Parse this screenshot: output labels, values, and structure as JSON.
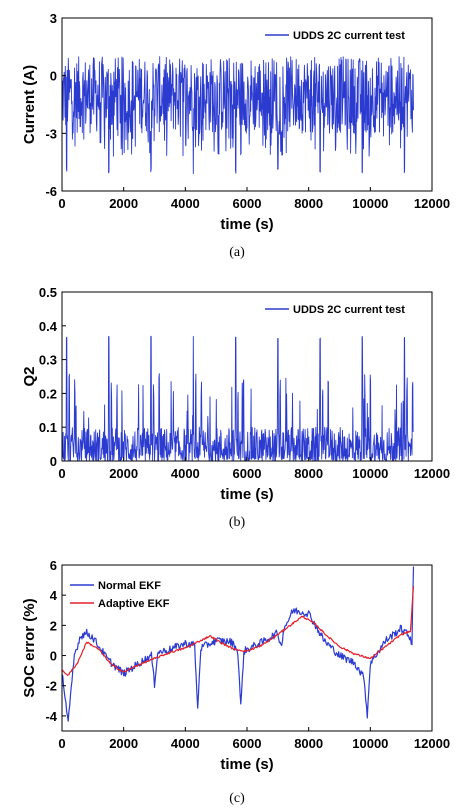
{
  "chart_data": [
    {
      "type": "line",
      "caption": "(a)",
      "xlabel": "time (s)",
      "ylabel": "Current (A)",
      "xlim": [
        0,
        12000
      ],
      "ylim": [
        -6,
        3
      ],
      "xticks": [
        0,
        2000,
        4000,
        6000,
        8000,
        10000,
        12000
      ],
      "yticks": [
        -6,
        -3,
        0,
        3
      ],
      "legend_position": "top-right",
      "grid": false,
      "series": [
        {
          "name": "UDDS 2C current test",
          "color": "#2b3bd0",
          "description": "dense oscillating current signal, mostly between about 1 and -3 A, with deep negative spikes to about -5 A roughly every 1370 s, ending at about 11400 s",
          "x_range": [
            0,
            11400
          ],
          "y_band": [
            -3,
            1
          ],
          "spike_times": [
            150,
            1520,
            2890,
            4260,
            5630,
            7000,
            8370,
            9740,
            11110
          ],
          "spike_min": -5.1
        }
      ]
    },
    {
      "type": "line",
      "caption": "(b)",
      "xlabel": "time (s)",
      "ylabel": "Q2",
      "xlim": [
        0,
        12000
      ],
      "ylim": [
        0,
        0.5
      ],
      "xticks": [
        0,
        2000,
        4000,
        6000,
        8000,
        10000,
        12000
      ],
      "yticks": [
        0,
        0.1,
        0.2,
        0.3,
        0.4,
        0.5
      ],
      "legend_position": "top-right",
      "grid": false,
      "series": [
        {
          "name": "UDDS 2C current test",
          "color": "#2b3bd0",
          "description": "noisy signal mostly between 0 and 0.1, with tall spikes up to about 0.37 roughly every 1370 s and secondary peaks near 0.2-0.25",
          "x_range": [
            0,
            11400
          ],
          "y_band": [
            0,
            0.1
          ],
          "spike_times": [
            150,
            1520,
            2890,
            4260,
            5630,
            7000,
            8370,
            9740,
            11110
          ],
          "spike_max": 0.37
        }
      ]
    },
    {
      "type": "line",
      "caption": "(c)",
      "xlabel": "time (s)",
      "ylabel": "SOC error (%)",
      "xlim": [
        0,
        12000
      ],
      "ylim": [
        -5,
        6
      ],
      "xticks": [
        0,
        2000,
        4000,
        6000,
        8000,
        10000,
        12000
      ],
      "yticks": [
        -4,
        -2,
        0,
        2,
        4,
        6
      ],
      "legend_position": "top-left",
      "grid": false,
      "series": [
        {
          "name": "Normal EKF",
          "color": "#2b3bd0",
          "x": [
            0,
            200,
            400,
            600,
            800,
            1000,
            1500,
            2000,
            2500,
            2900,
            3000,
            3100,
            3500,
            4000,
            4300,
            4400,
            4500,
            5000,
            5500,
            5700,
            5800,
            5900,
            6500,
            7000,
            7100,
            7200,
            7500,
            8000,
            8500,
            9000,
            9500,
            9800,
            9900,
            10000,
            10500,
            11000,
            11300,
            11350,
            11400
          ],
          "y": [
            -1.0,
            -4.5,
            0.0,
            1.3,
            1.5,
            1.2,
            -0.3,
            -1.2,
            -0.5,
            0.0,
            -1.9,
            0.2,
            0.4,
            0.8,
            0.7,
            -3.6,
            0.5,
            1.0,
            0.9,
            0.3,
            -3.4,
            0.3,
            0.9,
            1.5,
            0.6,
            1.8,
            3.0,
            2.8,
            1.0,
            0.0,
            -0.5,
            -1.5,
            -4.0,
            -0.5,
            1.0,
            1.8,
            1.2,
            0.8,
            5.9
          ]
        },
        {
          "name": "Adaptive EKF",
          "color": "#e3202a",
          "x": [
            0,
            200,
            500,
            800,
            1200,
            1600,
            2000,
            2500,
            3000,
            3500,
            4000,
            4500,
            4800,
            5200,
            5600,
            6000,
            6500,
            7000,
            7400,
            7800,
            8200,
            8600,
            9000,
            9500,
            10000,
            10500,
            11000,
            11300,
            11400
          ],
          "y": [
            -1.0,
            -1.3,
            -0.5,
            0.9,
            0.4,
            -0.6,
            -1.1,
            -0.6,
            -0.2,
            0.2,
            0.5,
            1.0,
            1.3,
            0.8,
            0.4,
            0.3,
            0.7,
            1.4,
            2.0,
            2.6,
            2.1,
            1.3,
            0.6,
            0.1,
            -0.2,
            0.6,
            1.4,
            1.6,
            4.6
          ]
        }
      ]
    }
  ]
}
